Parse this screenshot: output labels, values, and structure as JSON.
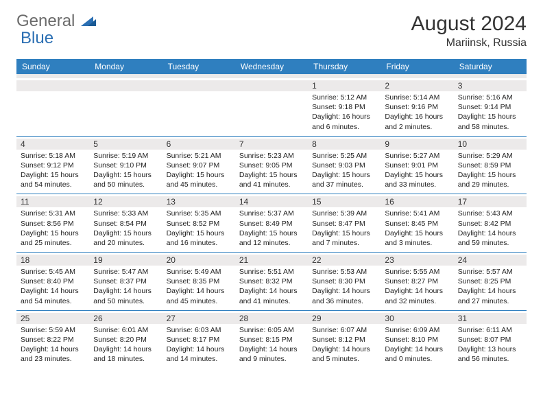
{
  "brand": {
    "part1": "General",
    "part2": "Blue"
  },
  "title": "August 2024",
  "location": "Mariinsk, Russia",
  "dayHeaders": [
    "Sunday",
    "Monday",
    "Tuesday",
    "Wednesday",
    "Thursday",
    "Friday",
    "Saturday"
  ],
  "colors": {
    "headerBar": "#2f7fbf",
    "dayNumBg": "#eceaea",
    "text": "#222222",
    "brandGray": "#6b6b6b",
    "brandBlue": "#2b6fb3"
  },
  "weeks": [
    [
      {
        "n": "",
        "sunrise": "",
        "sunset": "",
        "daylight": ""
      },
      {
        "n": "",
        "sunrise": "",
        "sunset": "",
        "daylight": ""
      },
      {
        "n": "",
        "sunrise": "",
        "sunset": "",
        "daylight": ""
      },
      {
        "n": "",
        "sunrise": "",
        "sunset": "",
        "daylight": ""
      },
      {
        "n": "1",
        "sunrise": "Sunrise: 5:12 AM",
        "sunset": "Sunset: 9:18 PM",
        "daylight": "Daylight: 16 hours and 6 minutes."
      },
      {
        "n": "2",
        "sunrise": "Sunrise: 5:14 AM",
        "sunset": "Sunset: 9:16 PM",
        "daylight": "Daylight: 16 hours and 2 minutes."
      },
      {
        "n": "3",
        "sunrise": "Sunrise: 5:16 AM",
        "sunset": "Sunset: 9:14 PM",
        "daylight": "Daylight: 15 hours and 58 minutes."
      }
    ],
    [
      {
        "n": "4",
        "sunrise": "Sunrise: 5:18 AM",
        "sunset": "Sunset: 9:12 PM",
        "daylight": "Daylight: 15 hours and 54 minutes."
      },
      {
        "n": "5",
        "sunrise": "Sunrise: 5:19 AM",
        "sunset": "Sunset: 9:10 PM",
        "daylight": "Daylight: 15 hours and 50 minutes."
      },
      {
        "n": "6",
        "sunrise": "Sunrise: 5:21 AM",
        "sunset": "Sunset: 9:07 PM",
        "daylight": "Daylight: 15 hours and 45 minutes."
      },
      {
        "n": "7",
        "sunrise": "Sunrise: 5:23 AM",
        "sunset": "Sunset: 9:05 PM",
        "daylight": "Daylight: 15 hours and 41 minutes."
      },
      {
        "n": "8",
        "sunrise": "Sunrise: 5:25 AM",
        "sunset": "Sunset: 9:03 PM",
        "daylight": "Daylight: 15 hours and 37 minutes."
      },
      {
        "n": "9",
        "sunrise": "Sunrise: 5:27 AM",
        "sunset": "Sunset: 9:01 PM",
        "daylight": "Daylight: 15 hours and 33 minutes."
      },
      {
        "n": "10",
        "sunrise": "Sunrise: 5:29 AM",
        "sunset": "Sunset: 8:59 PM",
        "daylight": "Daylight: 15 hours and 29 minutes."
      }
    ],
    [
      {
        "n": "11",
        "sunrise": "Sunrise: 5:31 AM",
        "sunset": "Sunset: 8:56 PM",
        "daylight": "Daylight: 15 hours and 25 minutes."
      },
      {
        "n": "12",
        "sunrise": "Sunrise: 5:33 AM",
        "sunset": "Sunset: 8:54 PM",
        "daylight": "Daylight: 15 hours and 20 minutes."
      },
      {
        "n": "13",
        "sunrise": "Sunrise: 5:35 AM",
        "sunset": "Sunset: 8:52 PM",
        "daylight": "Daylight: 15 hours and 16 minutes."
      },
      {
        "n": "14",
        "sunrise": "Sunrise: 5:37 AM",
        "sunset": "Sunset: 8:49 PM",
        "daylight": "Daylight: 15 hours and 12 minutes."
      },
      {
        "n": "15",
        "sunrise": "Sunrise: 5:39 AM",
        "sunset": "Sunset: 8:47 PM",
        "daylight": "Daylight: 15 hours and 7 minutes."
      },
      {
        "n": "16",
        "sunrise": "Sunrise: 5:41 AM",
        "sunset": "Sunset: 8:45 PM",
        "daylight": "Daylight: 15 hours and 3 minutes."
      },
      {
        "n": "17",
        "sunrise": "Sunrise: 5:43 AM",
        "sunset": "Sunset: 8:42 PM",
        "daylight": "Daylight: 14 hours and 59 minutes."
      }
    ],
    [
      {
        "n": "18",
        "sunrise": "Sunrise: 5:45 AM",
        "sunset": "Sunset: 8:40 PM",
        "daylight": "Daylight: 14 hours and 54 minutes."
      },
      {
        "n": "19",
        "sunrise": "Sunrise: 5:47 AM",
        "sunset": "Sunset: 8:37 PM",
        "daylight": "Daylight: 14 hours and 50 minutes."
      },
      {
        "n": "20",
        "sunrise": "Sunrise: 5:49 AM",
        "sunset": "Sunset: 8:35 PM",
        "daylight": "Daylight: 14 hours and 45 minutes."
      },
      {
        "n": "21",
        "sunrise": "Sunrise: 5:51 AM",
        "sunset": "Sunset: 8:32 PM",
        "daylight": "Daylight: 14 hours and 41 minutes."
      },
      {
        "n": "22",
        "sunrise": "Sunrise: 5:53 AM",
        "sunset": "Sunset: 8:30 PM",
        "daylight": "Daylight: 14 hours and 36 minutes."
      },
      {
        "n": "23",
        "sunrise": "Sunrise: 5:55 AM",
        "sunset": "Sunset: 8:27 PM",
        "daylight": "Daylight: 14 hours and 32 minutes."
      },
      {
        "n": "24",
        "sunrise": "Sunrise: 5:57 AM",
        "sunset": "Sunset: 8:25 PM",
        "daylight": "Daylight: 14 hours and 27 minutes."
      }
    ],
    [
      {
        "n": "25",
        "sunrise": "Sunrise: 5:59 AM",
        "sunset": "Sunset: 8:22 PM",
        "daylight": "Daylight: 14 hours and 23 minutes."
      },
      {
        "n": "26",
        "sunrise": "Sunrise: 6:01 AM",
        "sunset": "Sunset: 8:20 PM",
        "daylight": "Daylight: 14 hours and 18 minutes."
      },
      {
        "n": "27",
        "sunrise": "Sunrise: 6:03 AM",
        "sunset": "Sunset: 8:17 PM",
        "daylight": "Daylight: 14 hours and 14 minutes."
      },
      {
        "n": "28",
        "sunrise": "Sunrise: 6:05 AM",
        "sunset": "Sunset: 8:15 PM",
        "daylight": "Daylight: 14 hours and 9 minutes."
      },
      {
        "n": "29",
        "sunrise": "Sunrise: 6:07 AM",
        "sunset": "Sunset: 8:12 PM",
        "daylight": "Daylight: 14 hours and 5 minutes."
      },
      {
        "n": "30",
        "sunrise": "Sunrise: 6:09 AM",
        "sunset": "Sunset: 8:10 PM",
        "daylight": "Daylight: 14 hours and 0 minutes."
      },
      {
        "n": "31",
        "sunrise": "Sunrise: 6:11 AM",
        "sunset": "Sunset: 8:07 PM",
        "daylight": "Daylight: 13 hours and 56 minutes."
      }
    ]
  ]
}
